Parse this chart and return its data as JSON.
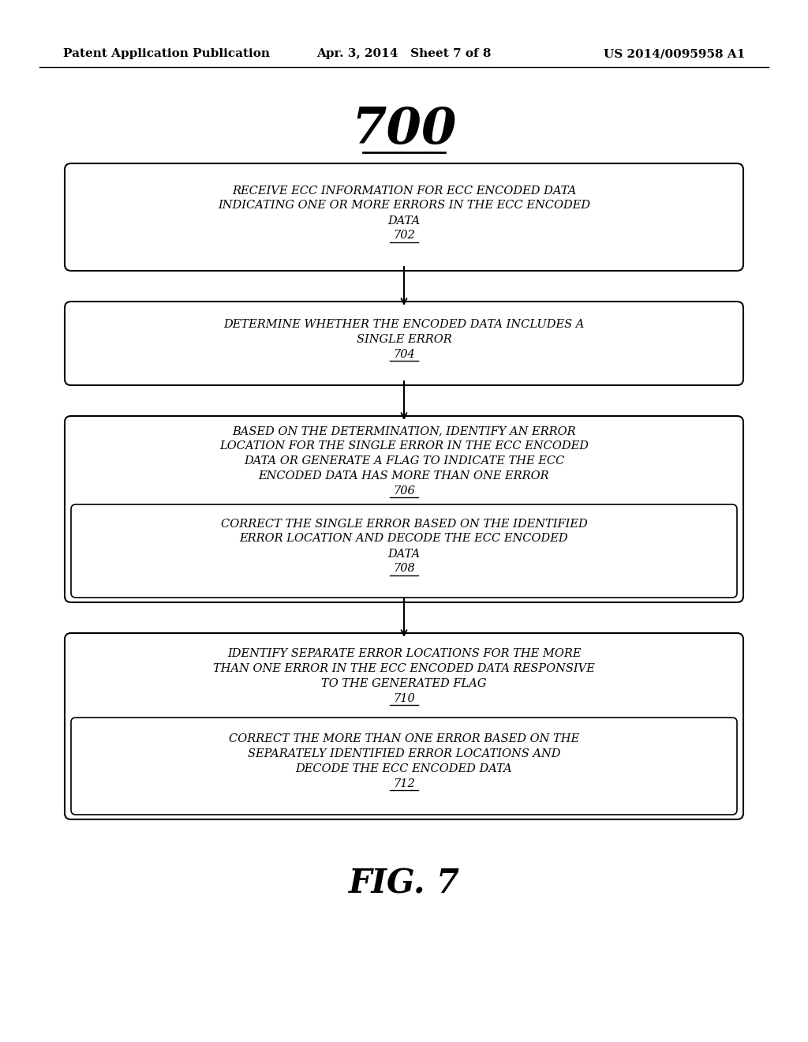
{
  "header_left": "Patent Application Publication",
  "header_mid": "Apr. 3, 2014   Sheet 7 of 8",
  "header_right": "US 2014/0095958 A1",
  "figure_number": "700",
  "figure_label": "FIG. 7",
  "boxes": [
    {
      "id": "702",
      "lines": [
        "RECEIVE ECC INFORMATION FOR ECC ENCODED DATA",
        "INDICATING ONE OR MORE ERRORS IN THE ECC ENCODED",
        "DATA"
      ],
      "label": "702",
      "type": "single"
    },
    {
      "id": "704",
      "lines": [
        "DETERMINE WHETHER THE ENCODED DATA INCLUDES A",
        "SINGLE ERROR"
      ],
      "label": "704",
      "type": "single"
    },
    {
      "id": "706_708",
      "top_lines": [
        "BASED ON THE DETERMINATION, IDENTIFY AN ERROR",
        "LOCATION FOR THE SINGLE ERROR IN THE ECC ENCODED",
        "DATA OR GENERATE A FLAG TO INDICATE THE ECC",
        "ENCODED DATA HAS MORE THAN ONE ERROR"
      ],
      "top_label": "706",
      "bottom_lines": [
        "CORRECT THE SINGLE ERROR BASED ON THE IDENTIFIED",
        "ERROR LOCATION AND DECODE THE ECC ENCODED",
        "DATA"
      ],
      "bottom_label": "708",
      "type": "double"
    },
    {
      "id": "710_712",
      "top_lines": [
        "IDENTIFY SEPARATE ERROR LOCATIONS FOR THE MORE",
        "THAN ONE ERROR IN THE ECC ENCODED DATA RESPONSIVE",
        "TO THE GENERATED FLAG"
      ],
      "top_label": "710",
      "bottom_lines": [
        "CORRECT THE MORE THAN ONE ERROR BASED ON THE",
        "SEPARATELY IDENTIFIED ERROR LOCATIONS AND",
        "DECODE THE ECC ENCODED DATA"
      ],
      "bottom_label": "712",
      "type": "double"
    }
  ],
  "background": "#ffffff",
  "box_edge_color": "#000000",
  "text_color": "#000000",
  "arrow_color": "#000000"
}
